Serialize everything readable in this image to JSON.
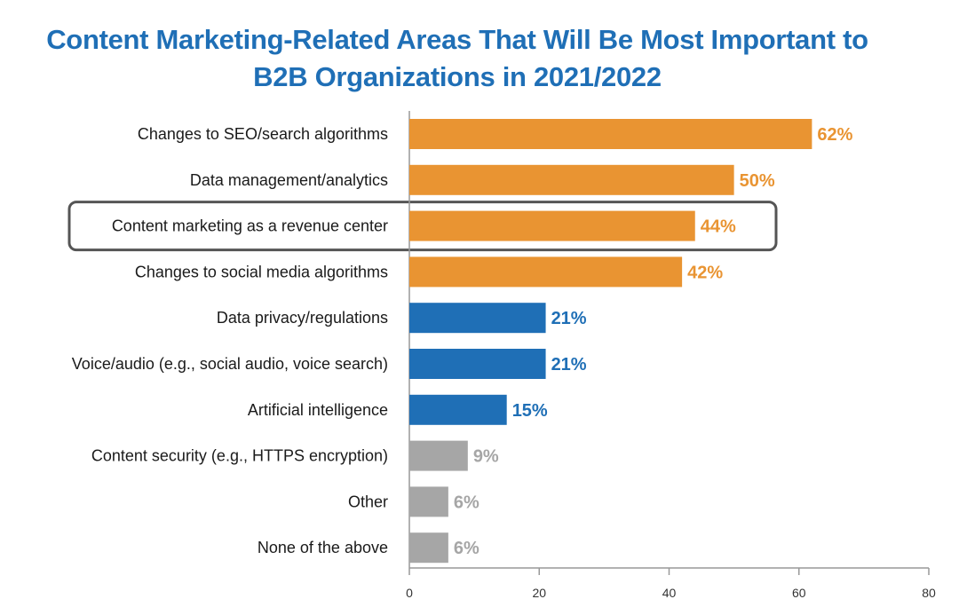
{
  "chart_data": {
    "type": "bar",
    "orientation": "horizontal",
    "title_lines": [
      "Content Marketing-Related Areas That Will Be Most Important to",
      "B2B Organizations in 2021/2022"
    ],
    "categories": [
      "Changes to SEO/search algorithms",
      "Data management/analytics",
      "Content marketing as a revenue center",
      "Changes to social media algorithms",
      "Data privacy/regulations",
      "Voice/audio (e.g., social audio, voice search)",
      "Artificial intelligence",
      "Content security (e.g., HTTPS encryption)",
      "Other",
      "None of the above"
    ],
    "values": [
      62,
      50,
      44,
      42,
      21,
      21,
      15,
      9,
      6,
      6
    ],
    "value_labels": [
      "62%",
      "50%",
      "44%",
      "42%",
      "21%",
      "21%",
      "15%",
      "9%",
      "6%",
      "6%"
    ],
    "bar_groups": [
      "orange",
      "orange",
      "orange",
      "orange",
      "blue",
      "blue",
      "blue",
      "gray",
      "gray",
      "gray"
    ],
    "highlighted_index": 2,
    "xlim": [
      0,
      80
    ],
    "x_ticks": [
      0,
      20,
      40,
      60,
      80
    ],
    "x_tick_labels": [
      "0",
      "20",
      "40",
      "60",
      "80"
    ],
    "xlabel": "",
    "ylabel": "",
    "grid": false,
    "colors": {
      "orange": "#e99432",
      "blue": "#1f6fb6",
      "gray": "#a6a6a6",
      "title": "#1f6fb6",
      "highlight_border": "#555555",
      "axis": "#999999"
    }
  }
}
